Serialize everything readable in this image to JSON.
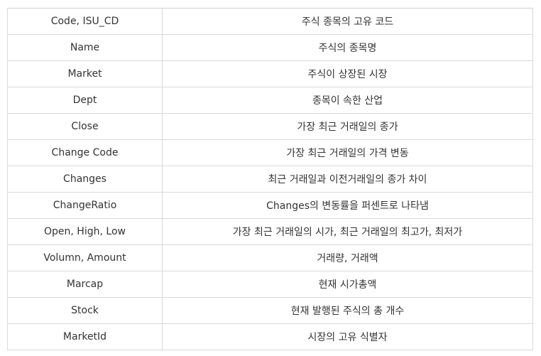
{
  "rows": [
    {
      "field": "Code, ISU_CD",
      "description": "주식 종목의 고유 코드"
    },
    {
      "field": "Name",
      "description": "주식의 종목명"
    },
    {
      "field": "Market",
      "description": "주식이 상장된 시장"
    },
    {
      "field": "Dept",
      "description": "종목이 속한 산업"
    },
    {
      "field": "Close",
      "description": "가장 최근 거래일의 종가"
    },
    {
      "field": "Change Code",
      "description": "가장 최근 거래일의 가격 변동"
    },
    {
      "field": "Changes",
      "description": "최근 거래일과 이전거래일의 종가 차이"
    },
    {
      "field": "ChangeRatio",
      "description": "Changes의 변동률을 퍼센트로 나타냄"
    },
    {
      "field": "Open, High, Low",
      "description": "가장 최근 거래일의 시가, 최근 거래일의 최고가, 최저가"
    },
    {
      "field": "Volumn, Amount",
      "description": "거래량, 거래액"
    },
    {
      "field": "Marcap",
      "description": "현재 시가총액"
    },
    {
      "field": "Stock",
      "description": "현재 발행된 주식의 총 개수"
    },
    {
      "field": "MarketId",
      "description": "시장의 고유 식별자"
    }
  ]
}
